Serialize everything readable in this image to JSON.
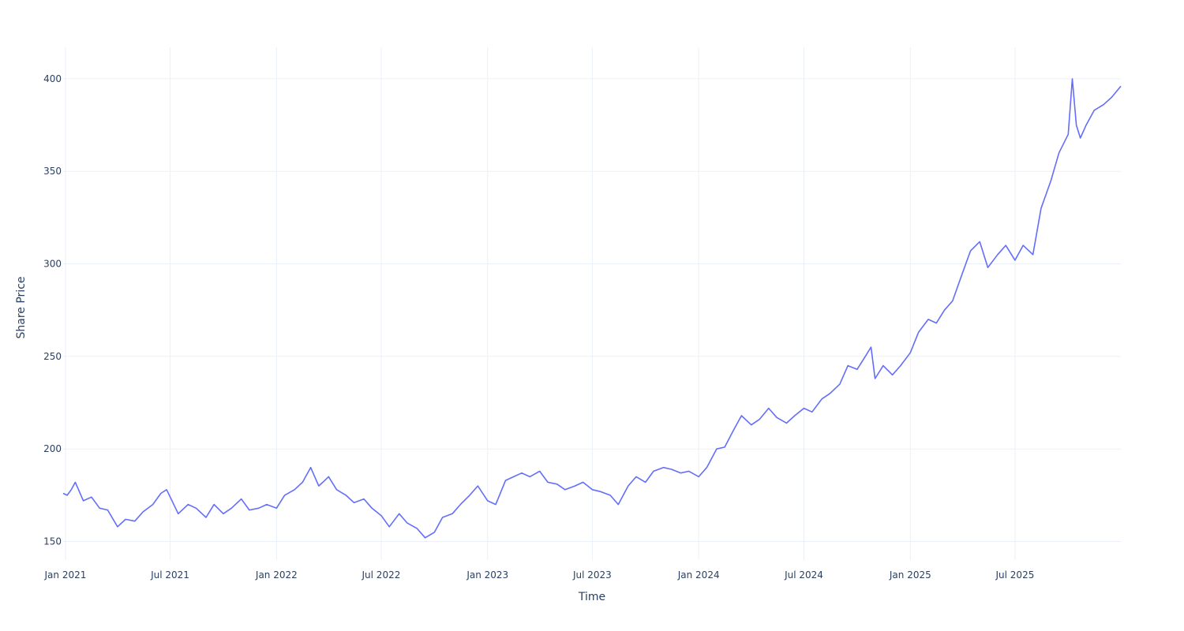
{
  "chart_data": {
    "type": "line",
    "title": "",
    "xlabel": "Time",
    "ylabel": "Share Price",
    "xlim": [
      "2020-12-28",
      "2025-12-31"
    ],
    "ylim": [
      140,
      417
    ],
    "grid": true,
    "line_color": "#636efa",
    "x_ticks": [
      {
        "date": "2021-01-01",
        "label": "Jan 2021"
      },
      {
        "date": "2021-07-01",
        "label": "Jul 2021"
      },
      {
        "date": "2022-01-01",
        "label": "Jan 2022"
      },
      {
        "date": "2022-07-01",
        "label": "Jul 2022"
      },
      {
        "date": "2023-01-01",
        "label": "Jan 2023"
      },
      {
        "date": "2023-07-01",
        "label": "Jul 2023"
      },
      {
        "date": "2024-01-01",
        "label": "Jan 2024"
      },
      {
        "date": "2024-07-01",
        "label": "Jul 2024"
      },
      {
        "date": "2025-01-01",
        "label": "Jan 2025"
      },
      {
        "date": "2025-07-01",
        "label": "Jul 2025"
      }
    ],
    "y_ticks": [
      {
        "value": 150,
        "label": "150"
      },
      {
        "value": 200,
        "label": "200"
      },
      {
        "value": 250,
        "label": "250"
      },
      {
        "value": 300,
        "label": "300"
      },
      {
        "value": 350,
        "label": "350"
      },
      {
        "value": 400,
        "label": "400"
      }
    ],
    "series": [
      {
        "x": [
          "2020-12-28",
          "2021-01-04",
          "2021-01-11",
          "2021-01-18",
          "2021-02-01",
          "2021-02-15",
          "2021-03-01",
          "2021-03-15",
          "2021-04-01",
          "2021-04-15",
          "2021-05-01",
          "2021-05-15",
          "2021-06-01",
          "2021-06-15",
          "2021-06-25",
          "2021-07-15",
          "2021-08-01",
          "2021-08-15",
          "2021-09-01",
          "2021-09-15",
          "2021-10-01",
          "2021-10-15",
          "2021-11-01",
          "2021-11-15",
          "2021-12-01",
          "2021-12-15",
          "2022-01-01",
          "2022-01-15",
          "2022-02-01",
          "2022-02-15",
          "2022-03-01",
          "2022-03-15",
          "2022-03-22",
          "2022-04-01",
          "2022-04-15",
          "2022-05-01",
          "2022-05-15",
          "2022-06-01",
          "2022-06-15",
          "2022-07-01",
          "2022-07-15",
          "2022-08-01",
          "2022-08-15",
          "2022-09-01",
          "2022-09-15",
          "2022-10-01",
          "2022-10-15",
          "2022-11-01",
          "2022-11-15",
          "2022-12-01",
          "2022-12-15",
          "2023-01-01",
          "2023-01-15",
          "2023-02-01",
          "2023-02-15",
          "2023-03-01",
          "2023-03-15",
          "2023-04-01",
          "2023-04-15",
          "2023-05-01",
          "2023-05-15",
          "2023-06-01",
          "2023-06-15",
          "2023-07-01",
          "2023-07-15",
          "2023-08-01",
          "2023-08-15",
          "2023-09-01",
          "2023-09-15",
          "2023-10-01",
          "2023-10-15",
          "2023-11-01",
          "2023-11-15",
          "2023-12-01",
          "2023-12-15",
          "2024-01-01",
          "2024-01-15",
          "2024-02-01",
          "2024-02-15",
          "2024-03-01",
          "2024-03-15",
          "2024-04-01",
          "2024-04-15",
          "2024-05-01",
          "2024-05-15",
          "2024-06-01",
          "2024-06-15",
          "2024-07-01",
          "2024-07-15",
          "2024-08-01",
          "2024-08-15",
          "2024-09-01",
          "2024-09-15",
          "2024-10-01",
          "2024-10-15",
          "2024-10-25",
          "2024-11-01",
          "2024-11-15",
          "2024-12-01",
          "2024-12-15",
          "2025-01-01",
          "2025-01-15",
          "2025-02-01",
          "2025-02-15",
          "2025-03-01",
          "2025-03-15",
          "2025-04-01",
          "2025-04-15",
          "2025-05-01",
          "2025-05-15",
          "2025-06-01",
          "2025-06-15",
          "2025-07-01",
          "2025-07-15",
          "2025-08-01",
          "2025-08-15",
          "2025-09-01",
          "2025-09-15",
          "2025-10-01",
          "2025-10-08",
          "2025-10-15",
          "2025-10-22",
          "2025-11-01",
          "2025-11-15",
          "2025-12-01",
          "2025-12-15",
          "2025-12-31"
        ],
        "y": [
          176,
          175,
          178,
          182,
          172,
          174,
          168,
          167,
          158,
          162,
          161,
          166,
          170,
          176,
          178,
          165,
          170,
          168,
          163,
          170,
          165,
          168,
          173,
          167,
          168,
          170,
          168,
          175,
          178,
          182,
          190,
          180,
          182,
          185,
          178,
          175,
          171,
          173,
          168,
          164,
          158,
          165,
          160,
          157,
          152,
          155,
          163,
          165,
          170,
          175,
          180,
          172,
          170,
          183,
          185,
          187,
          185,
          188,
          182,
          181,
          178,
          180,
          182,
          178,
          177,
          175,
          170,
          180,
          185,
          182,
          188,
          190,
          189,
          187,
          188,
          185,
          190,
          200,
          201,
          210,
          218,
          213,
          216,
          222,
          217,
          214,
          218,
          222,
          220,
          227,
          230,
          235,
          245,
          243,
          250,
          255,
          238,
          245,
          240,
          245,
          252,
          263,
          270,
          268,
          275,
          280,
          295,
          307,
          312,
          298,
          305,
          310,
          302,
          310,
          305,
          330,
          345,
          360,
          370,
          400,
          375,
          368,
          375,
          383,
          386,
          390,
          396
        ]
      }
    ]
  }
}
